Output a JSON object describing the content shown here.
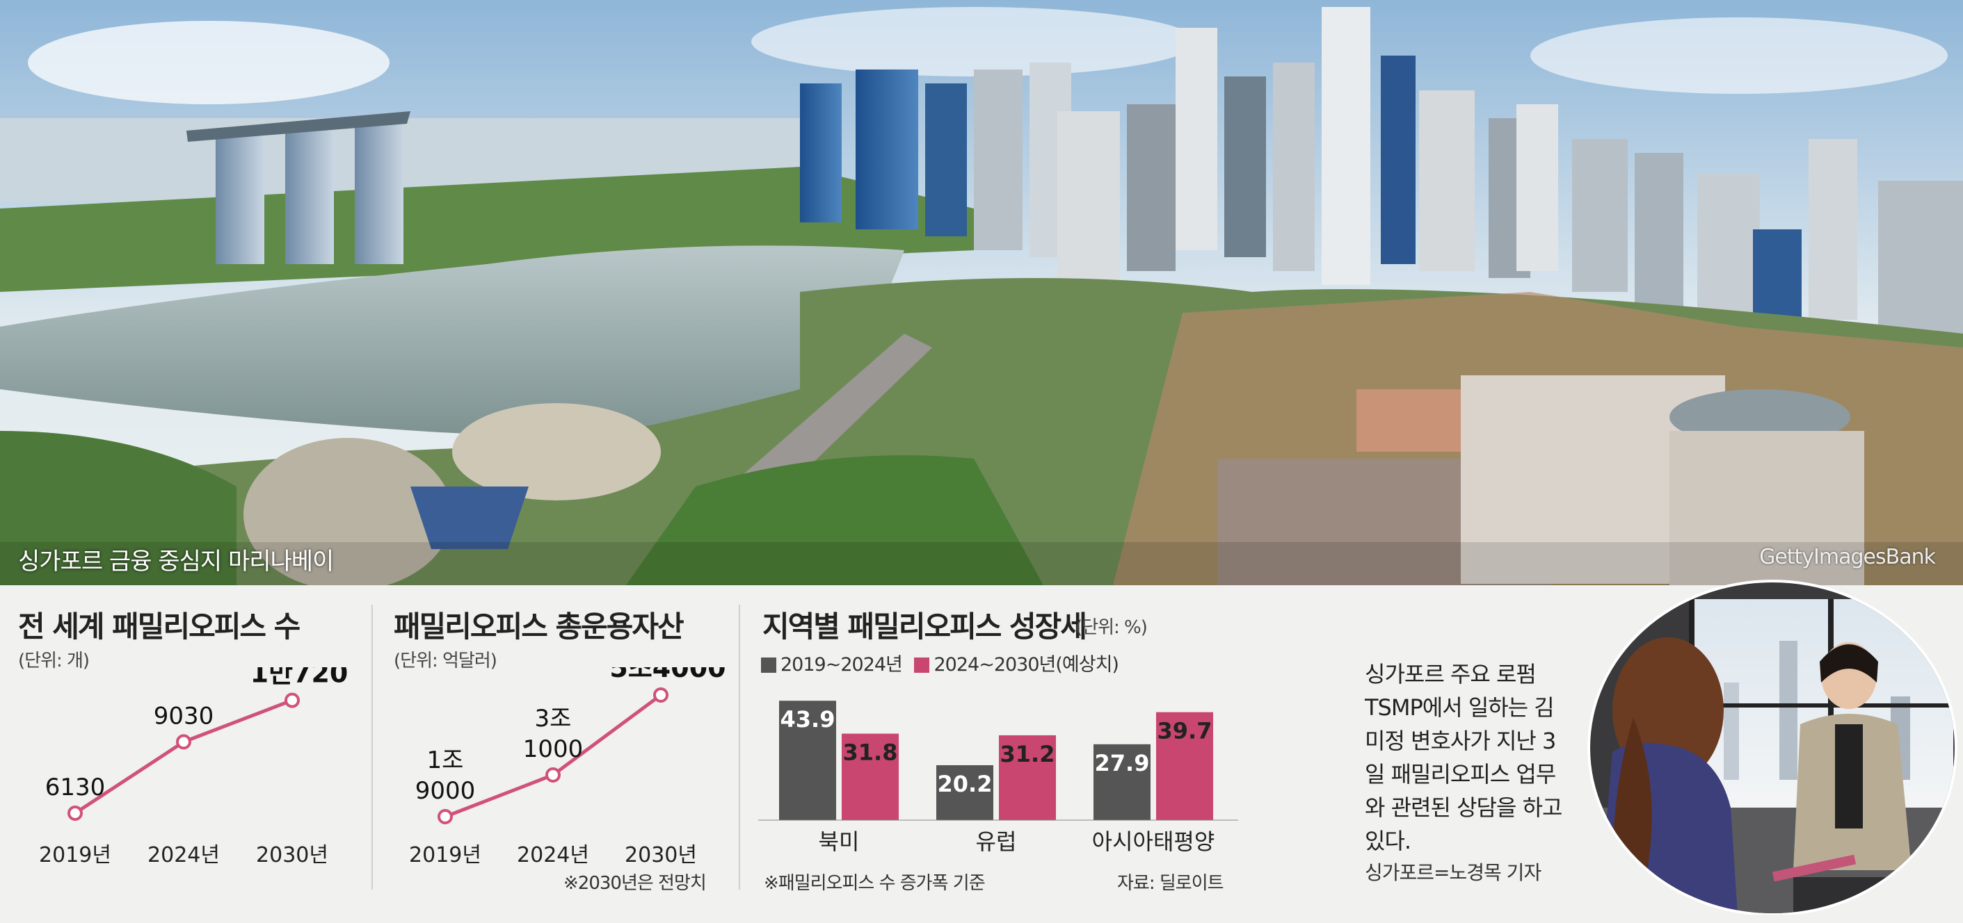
{
  "photo": {
    "caption": "싱가포르 금융 중심지 마리나베이",
    "credit": "GettyImagesBank"
  },
  "panels": [
    {
      "title": "전 세계 패밀리오피스 수",
      "unit": "(단위: 개)"
    },
    {
      "title": "패밀리오피스 총운용자산",
      "unit": "(단위: 억달러)",
      "note": "※2030년은 전망치"
    },
    {
      "title": "지역별 패밀리오피스 성장세",
      "unit": "(단위: %)",
      "note_left": "※패밀리오피스 수 증가폭 기준",
      "note_right": "자료: 딜로이트"
    }
  ],
  "side": {
    "text": "싱가포르 주요 로펌 TSMP에서 일하는 김미정 변호사가 지난 3일 패밀리오피스 업무와 관련된 상담을 하고 있다.",
    "byline": "싱가포르=노경목 기자"
  },
  "colors": {
    "line": "#d0527a",
    "marker_fill": "#ffffff",
    "bar_dark": "#555555",
    "bar_pink": "#c8466f",
    "background": "#f1f1ef"
  },
  "chart_data": [
    {
      "type": "line",
      "title": "전 세계 패밀리오피스 수",
      "x": [
        "2019년",
        "2024년",
        "2030년"
      ],
      "values": [
        6130,
        9030,
        10720
      ],
      "value_labels": [
        "6130",
        "9030",
        "1만720"
      ],
      "ylim": [
        5000,
        11500
      ],
      "grid": false
    },
    {
      "type": "line",
      "title": "패밀리오피스 총운용자산",
      "x": [
        "2019년",
        "2024년",
        "2030년"
      ],
      "values": [
        19000,
        31000,
        54000
      ],
      "value_labels": [
        [
          "1조",
          "9000"
        ],
        [
          "3조",
          "1000"
        ],
        [
          "5조4000"
        ]
      ],
      "ylim": [
        12000,
        58000
      ],
      "grid": false
    },
    {
      "type": "bar",
      "title": "지역별 패밀리오피스 성장세",
      "categories": [
        "북미",
        "유럽",
        "아시아태평양"
      ],
      "series": [
        {
          "name": "2019~2024년",
          "values": [
            43.9,
            20.2,
            27.9
          ],
          "color": "#555555"
        },
        {
          "name": "2024~2030년(예상치)",
          "values": [
            31.8,
            31.2,
            39.7
          ],
          "color": "#c8466f"
        }
      ],
      "ylim": [
        0,
        46
      ],
      "grid": false,
      "legend": "top-left"
    }
  ]
}
